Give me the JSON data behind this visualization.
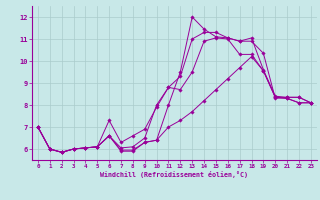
{
  "bg_color": "#c8e8e8",
  "line_color": "#990099",
  "grid_color": "#aacccc",
  "xlabel": "Windchill (Refroidissement éolien,°C)",
  "xlim": [
    -0.5,
    23.5
  ],
  "ylim": [
    5.5,
    12.5
  ],
  "yticks": [
    6,
    7,
    8,
    9,
    10,
    11,
    12
  ],
  "xticks": [
    0,
    1,
    2,
    3,
    4,
    5,
    6,
    7,
    8,
    9,
    10,
    11,
    12,
    13,
    14,
    15,
    16,
    17,
    18,
    19,
    20,
    21,
    22,
    23
  ],
  "series": [
    [
      7.0,
      6.0,
      5.85,
      6.0,
      6.05,
      6.1,
      6.6,
      5.95,
      5.95,
      6.3,
      6.4,
      8.0,
      9.5,
      12.0,
      11.45,
      11.1,
      11.05,
      10.9,
      10.9,
      10.35,
      8.3,
      8.35,
      8.35,
      8.1
    ],
    [
      7.0,
      6.0,
      5.85,
      6.0,
      6.05,
      6.1,
      7.3,
      6.3,
      6.6,
      6.9,
      7.9,
      8.8,
      9.3,
      11.0,
      11.3,
      11.3,
      11.05,
      10.9,
      11.05,
      9.6,
      8.4,
      8.35,
      8.35,
      8.1
    ],
    [
      7.0,
      6.0,
      5.85,
      6.0,
      6.05,
      6.1,
      6.6,
      6.05,
      6.1,
      6.5,
      8.0,
      8.8,
      8.7,
      9.5,
      10.9,
      11.05,
      11.0,
      10.3,
      10.3,
      9.55,
      8.35,
      8.3,
      8.1,
      8.1
    ],
    [
      7.0,
      6.0,
      5.85,
      6.0,
      6.05,
      6.1,
      6.6,
      5.9,
      5.9,
      6.3,
      6.4,
      7.0,
      7.3,
      7.7,
      8.2,
      8.7,
      9.2,
      9.7,
      10.2,
      9.55,
      8.35,
      8.3,
      8.1,
      8.1
    ]
  ]
}
